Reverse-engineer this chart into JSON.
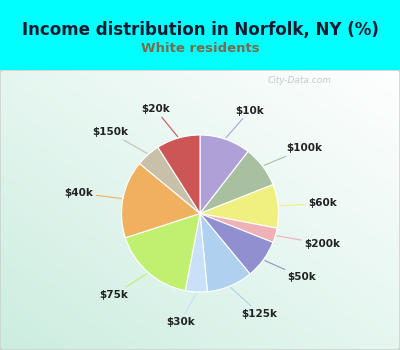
{
  "title": "Income distribution in Norfolk, NY (%)",
  "subtitle": "White residents",
  "title_color": "#1a1a2e",
  "subtitle_color": "#7a6a50",
  "background_color": "#00ffff",
  "labels": [
    "$10k",
    "$100k",
    "$60k",
    "$200k",
    "$50k",
    "$125k",
    "$30k",
    "$75k",
    "$40k",
    "$150k",
    "$20k"
  ],
  "sizes": [
    10.5,
    8.5,
    9.0,
    3.0,
    8.0,
    9.5,
    4.5,
    17.0,
    16.0,
    5.0,
    9.0
  ],
  "colors": [
    "#b0a0d8",
    "#a8c0a0",
    "#f0f080",
    "#f0b0b8",
    "#9090d0",
    "#b0d0f0",
    "#c8e0f8",
    "#c0f070",
    "#f0b060",
    "#c8c0a8",
    "#cc5555"
  ],
  "startangle": 90,
  "label_fontsize": 7.5,
  "title_fontsize": 12,
  "subtitle_fontsize": 9.5,
  "watermark_text": "City-Data.com"
}
